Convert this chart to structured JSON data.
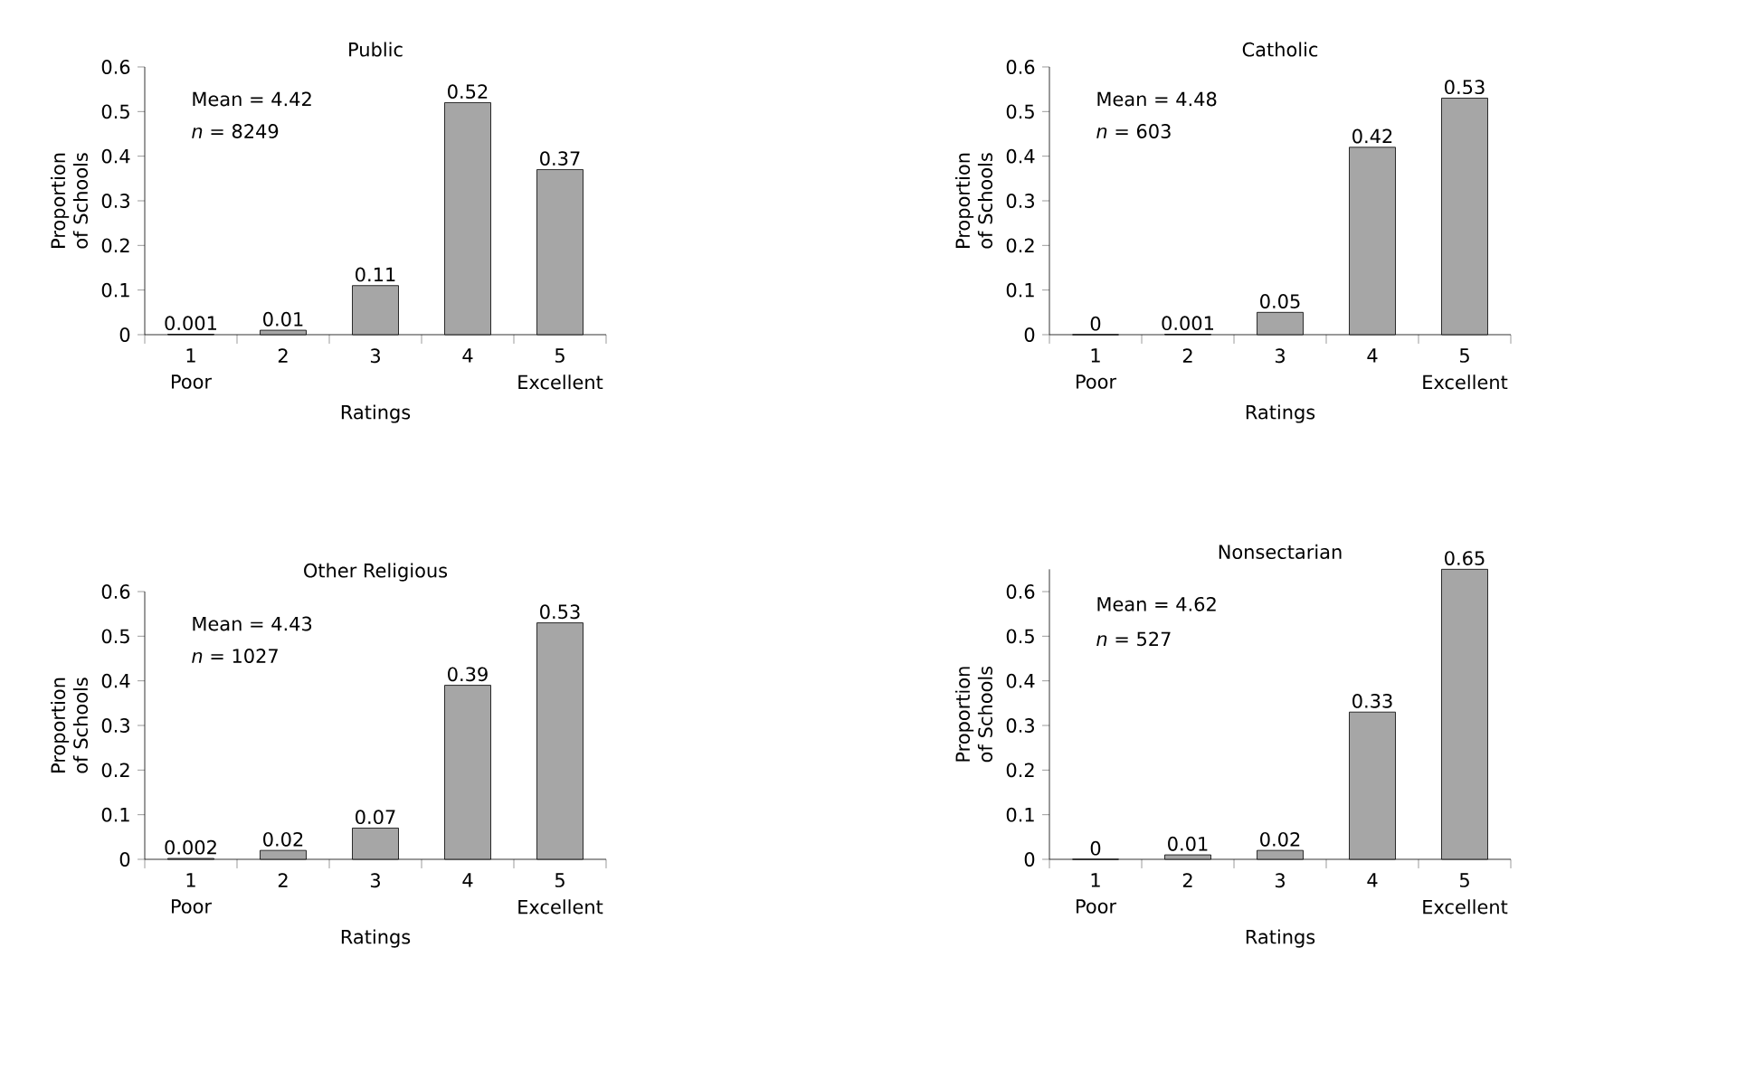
{
  "chart_data": [
    {
      "type": "bar",
      "title": "Public",
      "categories": [
        "1",
        "2",
        "3",
        "4",
        "5"
      ],
      "values": [
        0.001,
        0.01,
        0.11,
        0.52,
        0.37
      ],
      "color": "#a6a6a6",
      "data_labels": true,
      "xlabel": "Ratings",
      "ylabel": "Proportion of Schools",
      "ylim": [
        0,
        0.6
      ],
      "yticks": [
        0,
        0.1,
        0.2,
        0.3,
        0.4,
        0.5,
        0.6
      ],
      "annotations": [
        "Mean = 4.42",
        "*n* = 8249",
        "Poor",
        "Excellent"
      ]
    },
    {
      "type": "bar",
      "title": "Catholic",
      "categories": [
        "1",
        "2",
        "3",
        "4",
        "5"
      ],
      "values": [
        0,
        0.001,
        0.05,
        0.42,
        0.53
      ],
      "color": "#a6a6a6",
      "data_labels": true,
      "xlabel": "Ratings",
      "ylabel": "Proportion of Schools",
      "ylim": [
        0,
        0.6
      ],
      "yticks": [
        0,
        0.1,
        0.2,
        0.3,
        0.4,
        0.5,
        0.6
      ],
      "annotations": [
        "Mean = 4.48",
        "*n* = 603",
        "Poor",
        "Excellent"
      ]
    },
    {
      "type": "bar",
      "title": "Other Religious",
      "categories": [
        "1",
        "2",
        "3",
        "4",
        "5"
      ],
      "values": [
        0.002,
        0.02,
        0.07,
        0.39,
        0.53
      ],
      "color": "#a6a6a6",
      "data_labels": true,
      "xlabel": "Ratings",
      "ylabel": "Proportion of Schools",
      "ylim": [
        0,
        0.6
      ],
      "yticks": [
        0,
        0.1,
        0.2,
        0.3,
        0.4,
        0.5,
        0.6
      ],
      "annotations": [
        "Mean = 4.43",
        "*n* = 1027",
        "Poor",
        "Excellent"
      ]
    },
    {
      "type": "bar",
      "title": "Nonsectarian",
      "categories": [
        "1",
        "2",
        "3",
        "4",
        "5"
      ],
      "values": [
        0,
        0.01,
        0.02,
        0.33,
        0.65
      ],
      "color": "#a6a6a6",
      "data_labels": true,
      "xlabel": "Ratings",
      "ylabel": "Proportion of Schools",
      "ylim": [
        0,
        0.65
      ],
      "yticks": [
        0,
        0.1,
        0.2,
        0.3,
        0.4,
        0.5,
        0.6
      ],
      "annotations": [
        "Mean = 4.62",
        "*n* = 527",
        "Poor",
        "Excellent"
      ]
    }
  ]
}
